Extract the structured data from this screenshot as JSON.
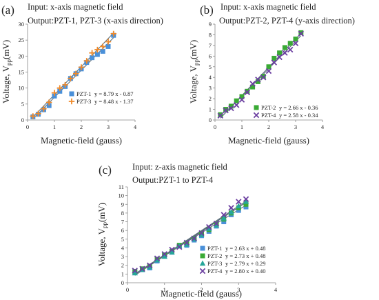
{
  "chart_data": [
    {
      "type": "scatter",
      "panel_label": "(a)",
      "title": "Input: x-axis magnetic field",
      "subtitle": "Output:PZT-1, PZT-3 (x-axis direction)",
      "xlabel": "Magnetic-field (gauss)",
      "ylabel": "Voltage, Vpp(mV)",
      "xlim": [
        0,
        4
      ],
      "ylim": [
        0,
        30
      ],
      "xticks": [
        0,
        1,
        2,
        3,
        4
      ],
      "yticks": [
        0,
        5,
        10,
        15,
        20,
        25,
        30
      ],
      "grid": false,
      "legend_position": "bottom-right",
      "series": [
        {
          "name": "PZT-1",
          "fit": "y = 8.79 x - 0.87",
          "marker": "square",
          "color": "#4a90d9",
          "x": [
            0.2,
            0.4,
            0.6,
            0.8,
            1.0,
            1.2,
            1.4,
            1.6,
            1.8,
            2.0,
            2.2,
            2.4,
            2.6,
            2.8,
            3.0,
            3.2
          ],
          "y": [
            1.0,
            1.8,
            3.2,
            4.5,
            7.5,
            9.0,
            10.5,
            13.0,
            14.5,
            16.0,
            18.0,
            19.5,
            20.5,
            21.5,
            23.0,
            26.5
          ]
        },
        {
          "name": "PZT-3",
          "fit": "y = 8.48 x - 1.37",
          "marker": "plus",
          "color": "#f08a2a",
          "x": [
            0.2,
            0.4,
            0.6,
            0.8,
            1.0,
            1.2,
            1.4,
            1.6,
            1.8,
            2.0,
            2.2,
            2.4,
            2.6,
            2.8,
            3.0,
            3.2
          ],
          "y": [
            1.2,
            2.0,
            3.5,
            5.5,
            8.5,
            10.0,
            11.0,
            13.0,
            14.5,
            16.5,
            18.5,
            21.0,
            22.0,
            23.0,
            24.5,
            27.0
          ]
        }
      ]
    },
    {
      "type": "scatter",
      "panel_label": "(b)",
      "title": "Input: x-axis magnetic field",
      "subtitle": "Output:PZT-2, PZT-4 (y-axis direction)",
      "xlabel": "Magnetic-field (gauss)",
      "ylabel": "Voltage, Vpp(mV)",
      "xlim": [
        0,
        4
      ],
      "ylim": [
        0,
        9
      ],
      "xticks": [
        0,
        1,
        2,
        3,
        4
      ],
      "yticks": [
        0,
        1,
        2,
        3,
        4,
        5,
        6,
        7,
        8,
        9
      ],
      "grid": false,
      "legend_position": "bottom-right",
      "series": [
        {
          "name": "PZT-2",
          "fit": "y = 2.66 x - 0.36",
          "marker": "square",
          "color": "#3aaa35",
          "x": [
            0.2,
            0.4,
            0.6,
            0.8,
            1.0,
            1.2,
            1.4,
            1.6,
            1.8,
            2.0,
            2.2,
            2.4,
            2.6,
            2.8,
            3.0,
            3.2
          ],
          "y": [
            0.5,
            1.0,
            1.3,
            1.8,
            2.2,
            2.7,
            3.1,
            3.6,
            4.1,
            5.0,
            5.8,
            6.3,
            6.8,
            7.2,
            7.6,
            8.2
          ]
        },
        {
          "name": "PZT-4",
          "fit": "y = 2.58 x - 0.34",
          "marker": "x",
          "color": "#6b3fa0",
          "x": [
            0.2,
            0.4,
            0.6,
            0.8,
            1.0,
            1.2,
            1.4,
            1.6,
            1.8,
            2.0,
            2.2,
            2.4,
            2.6,
            2.8,
            3.0,
            3.2
          ],
          "y": [
            0.4,
            0.9,
            1.1,
            1.4,
            1.9,
            2.6,
            3.4,
            3.8,
            4.0,
            4.6,
            5.4,
            5.9,
            6.3,
            6.6,
            7.2,
            8.1
          ]
        }
      ]
    },
    {
      "type": "scatter",
      "panel_label": "(c)",
      "title": "Input: z-axis magnetic field",
      "subtitle": "Output:PZT-1 to PZT-4",
      "xlabel": "Magnetic-field (gauss)",
      "ylabel": "Voltage, Vpp(mV)",
      "xlim": [
        0,
        4
      ],
      "ylim": [
        0,
        11
      ],
      "xticks": [
        0,
        1,
        2,
        3,
        4
      ],
      "yticks": [
        0,
        1,
        2,
        3,
        4,
        5,
        6,
        7,
        8,
        9,
        10,
        11
      ],
      "grid": false,
      "legend_position": "bottom-right",
      "series": [
        {
          "name": "PZT-1",
          "fit": "y = 2.63 x + 0.48",
          "marker": "square",
          "color": "#4a90d9",
          "x": [
            0.2,
            0.4,
            0.6,
            0.8,
            1.0,
            1.2,
            1.4,
            1.6,
            1.8,
            2.0,
            2.2,
            2.4,
            2.6,
            2.8,
            3.0,
            3.2
          ],
          "y": [
            1.2,
            1.5,
            1.7,
            2.5,
            3.1,
            3.5,
            4.2,
            4.3,
            4.9,
            5.4,
            5.9,
            6.5,
            7.0,
            7.8,
            8.3,
            8.7
          ]
        },
        {
          "name": "PZT-2",
          "fit": "y = 2.73 x + 0.48",
          "marker": "square",
          "color": "#3aaa35",
          "x": [
            0.2,
            0.4,
            0.6,
            0.8,
            1.0,
            1.2,
            1.4,
            1.6,
            1.8,
            2.0,
            2.2,
            2.4,
            2.6,
            2.8,
            3.0,
            3.2
          ],
          "y": [
            1.3,
            1.6,
            1.9,
            2.7,
            3.2,
            3.6,
            4.3,
            4.5,
            5.1,
            5.6,
            6.1,
            6.7,
            7.3,
            8.0,
            8.6,
            9.0
          ]
        },
        {
          "name": "PZT-3",
          "fit": "y = 2.79 x + 0.29",
          "marker": "triangle",
          "color": "#26a69a",
          "x": [
            0.2,
            0.4,
            0.6,
            0.8,
            1.0,
            1.2,
            1.4,
            1.6,
            1.8,
            2.0,
            2.2,
            2.4,
            2.6,
            2.8,
            3.0,
            3.2
          ],
          "y": [
            1.1,
            1.5,
            1.8,
            2.6,
            3.0,
            3.5,
            4.2,
            4.4,
            5.0,
            5.5,
            6.2,
            6.6,
            7.4,
            8.1,
            8.8,
            9.3
          ]
        },
        {
          "name": "PZT-4",
          "fit": "y = 2.80 x + 0.40",
          "marker": "x",
          "color": "#6b3fa0",
          "x": [
            0.2,
            0.4,
            0.6,
            0.8,
            1.0,
            1.2,
            1.4,
            1.6,
            1.8,
            2.0,
            2.2,
            2.4,
            2.6,
            2.8,
            3.0,
            3.2
          ],
          "y": [
            1.4,
            1.6,
            2.0,
            2.8,
            3.3,
            3.8,
            4.1,
            4.6,
            5.1,
            5.7,
            6.4,
            6.8,
            7.8,
            8.6,
            9.3,
            9.6
          ]
        }
      ]
    }
  ]
}
